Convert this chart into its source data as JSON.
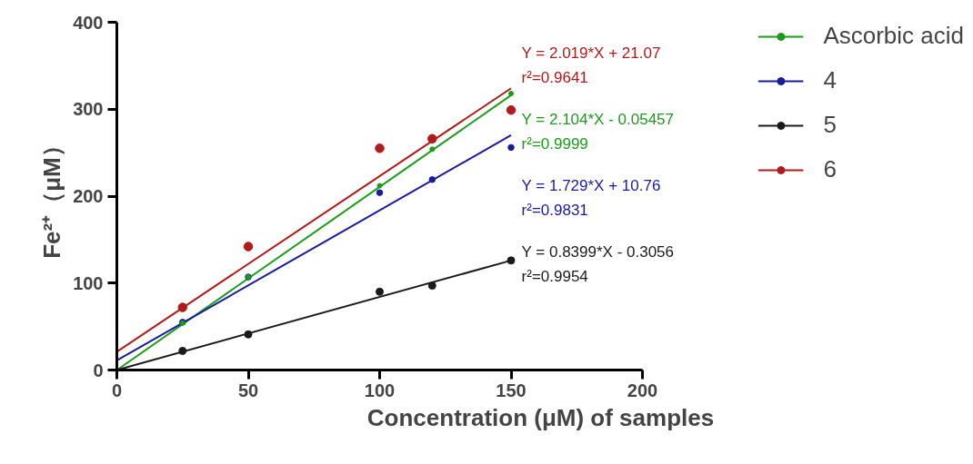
{
  "chart_data": {
    "type": "scatter",
    "xlabel": "Concentration (μM) of samples",
    "ylabel": "Fe²⁺（μM）",
    "xlim": [
      0,
      200
    ],
    "ylim": [
      0,
      400
    ],
    "xticks": [
      0,
      50,
      100,
      150,
      200
    ],
    "yticks": [
      0,
      100,
      200,
      300,
      400
    ],
    "grid": false,
    "legend": "top right",
    "marker": "circle",
    "series": [
      {
        "name": "Ascorbic acid",
        "color": "#1a9c1a",
        "x": [
          25,
          50,
          100,
          120,
          150
        ],
        "values": [
          54,
          107,
          212,
          254,
          318
        ]
      },
      {
        "type": "line",
        "marker": "none",
        "color": "#1a9c1a",
        "x": [
          0,
          150
        ],
        "values": [
          0,
          316
        ]
      },
      {
        "name": "4",
        "color": "#1a1a9c",
        "x": [
          25,
          50,
          100,
          120,
          150
        ],
        "values": [
          55,
          107,
          204,
          219,
          256
        ]
      },
      {
        "type": "line",
        "marker": "none",
        "color": "#1a1a9c",
        "x": [
          0,
          150
        ],
        "values": [
          11,
          270
        ]
      },
      {
        "name": "5",
        "color": "#1a1a1a",
        "x": [
          25,
          50,
          100,
          120,
          150
        ],
        "values": [
          22,
          41,
          90,
          97,
          126
        ]
      },
      {
        "type": "line",
        "marker": "none",
        "color": "#1a1a1a",
        "x": [
          0,
          150
        ],
        "values": [
          0,
          126
        ]
      },
      {
        "name": "6",
        "color": "#b01a1a",
        "x": [
          25,
          50,
          100,
          120,
          150
        ],
        "values": [
          72,
          142,
          255,
          266,
          299
        ]
      },
      {
        "type": "line",
        "marker": "none",
        "color": "#b01a1a",
        "x": [
          0,
          150
        ],
        "values": [
          21,
          324
        ]
      }
    ],
    "annotations": [
      "Y = 2.019*X + 21.07",
      "r²=0.9641",
      "Y = 2.104*X - 0.05457",
      "r²=0.9999",
      "Y = 1.729*X + 10.76",
      "r²=0.9831",
      "Y = 0.8399*X - 0.3056",
      "r²=0.9954"
    ]
  }
}
